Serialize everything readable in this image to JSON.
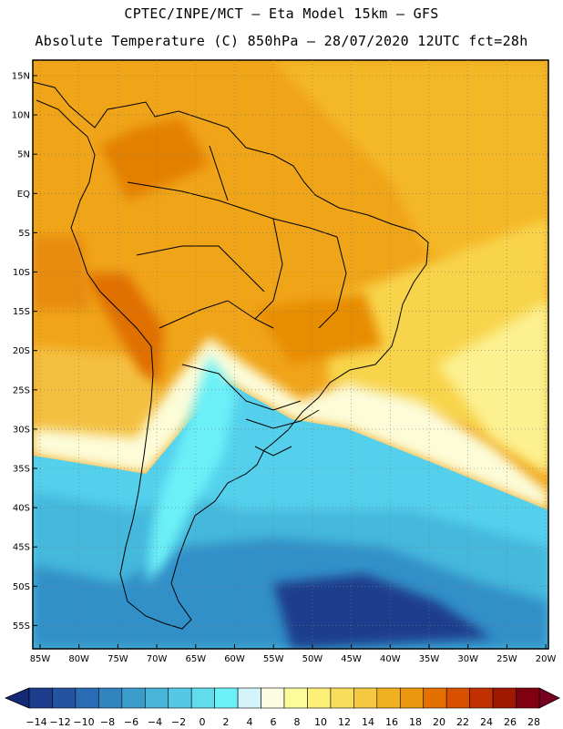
{
  "title_line1": "CPTEC/INPE/MCT –  Eta Model 15km – GFS",
  "title_line2": "Absolute Temperature (C) 850hPa – 28/07/2020 12UTC fct=28h",
  "lat_labels": [
    "15N",
    "10N",
    "5N",
    "EQ",
    "5S",
    "10S",
    "15S",
    "20S",
    "25S",
    "30S",
    "35S",
    "40S",
    "45S",
    "50S",
    "55S"
  ],
  "lon_labels": [
    "85W",
    "80W",
    "75W",
    "70W",
    "65W",
    "60W",
    "55W",
    "50W",
    "45W",
    "40W",
    "35W",
    "30W",
    "25W",
    "20W"
  ],
  "colorbar": {
    "labels": [
      "-14",
      "-12",
      "-10",
      "-8",
      "-6",
      "-4",
      "-2",
      "0",
      "2",
      "4",
      "6",
      "8",
      "10",
      "12",
      "14",
      "16",
      "18",
      "20",
      "22",
      "24",
      "26",
      "28"
    ],
    "colors": [
      "#1e3c8c",
      "#2454a0",
      "#2a6cb4",
      "#3284c0",
      "#3c9ccc",
      "#48b4d8",
      "#54c8e4",
      "#60dcec",
      "#6cf0f8",
      "#d4f4fc",
      "#fcfce0",
      "#fcfc9c",
      "#fcf078",
      "#f8dc5c",
      "#f4c840",
      "#f0b020",
      "#ec9810",
      "#e47000",
      "#d85000",
      "#c03000",
      "#a01800",
      "#800010"
    ],
    "under_color": "#142878",
    "over_color": "#780020"
  },
  "colors": {
    "warm_tropics": "#f0a418",
    "hot_andes": "#e47a00",
    "subtropical": "#f8d44c",
    "cold_south": "#40c8e4",
    "coldest": "#1e3c8c"
  }
}
